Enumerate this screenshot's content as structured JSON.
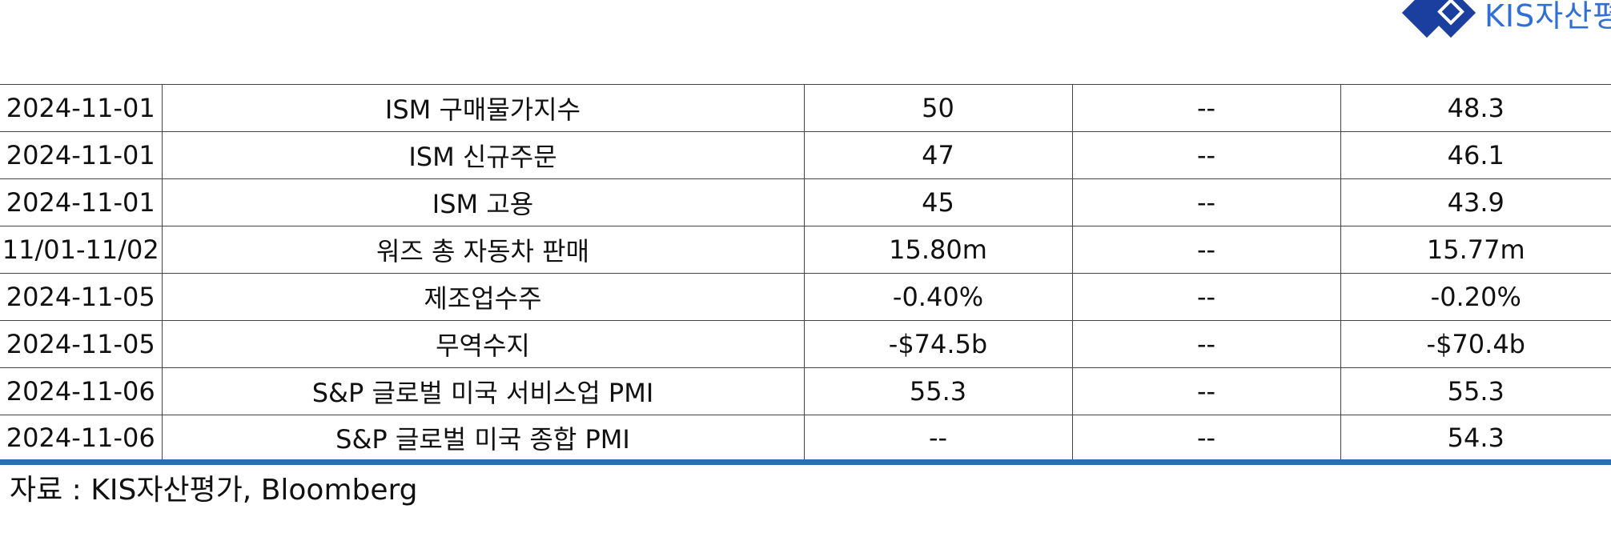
{
  "logo": {
    "text": "KIS자산평가",
    "brand_color": "#1b3f9e",
    "text_color": "#2f6fd6"
  },
  "table": {
    "border_color": "#444444",
    "bottom_rule_color": "#2e6bb0",
    "rows": [
      {
        "date": "2024-11-01",
        "indicator": "ISM 구매물가지수",
        "survey": "50",
        "actual": "--",
        "prior": "48.3"
      },
      {
        "date": "2024-11-01",
        "indicator": "ISM 신규주문",
        "survey": "47",
        "actual": "--",
        "prior": "46.1"
      },
      {
        "date": "2024-11-01",
        "indicator": "ISM 고용",
        "survey": "45",
        "actual": "--",
        "prior": "43.9"
      },
      {
        "date": "11/01-11/02",
        "indicator": "워즈 총 자동차 판매",
        "survey": "15.80m",
        "actual": "--",
        "prior": "15.77m"
      },
      {
        "date": "2024-11-05",
        "indicator": "제조업수주",
        "survey": "-0.40%",
        "actual": "--",
        "prior": "-0.20%"
      },
      {
        "date": "2024-11-05",
        "indicator": "무역수지",
        "survey": "-$74.5b",
        "actual": "--",
        "prior": "-$70.4b"
      },
      {
        "date": "2024-11-06",
        "indicator": "S&P 글로벌 미국 서비스업 PMI",
        "survey": "55.3",
        "actual": "--",
        "prior": "55.3"
      },
      {
        "date": "2024-11-06",
        "indicator": "S&P 글로벌 미국 종합 PMI",
        "survey": "--",
        "actual": "--",
        "prior": "54.3"
      }
    ]
  },
  "source_note": "자료 : KIS자산평가, Bloomberg"
}
